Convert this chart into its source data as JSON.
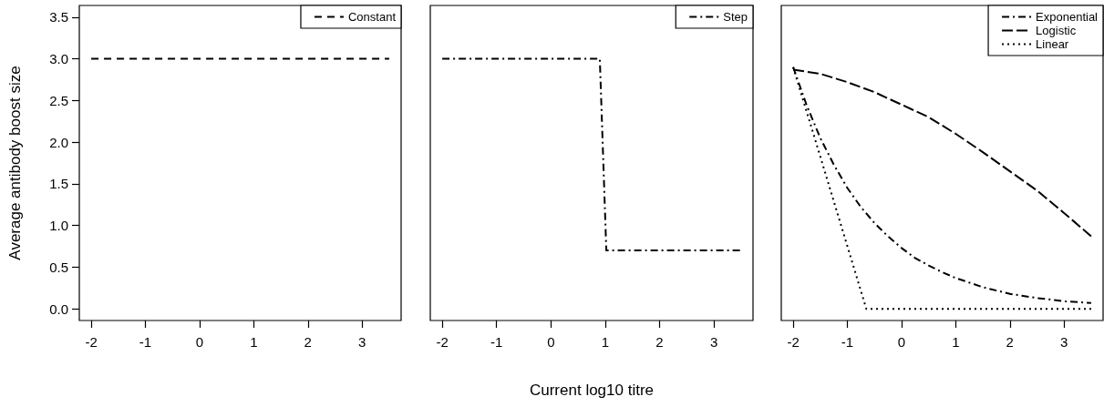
{
  "chart_data": [
    {
      "type": "line",
      "ylabel": "Average antibody boost size",
      "legend": "top right",
      "xlim": [
        -2.22,
        3.72
      ],
      "ylim": [
        -0.14,
        3.64
      ],
      "xticks": [
        -2,
        -1,
        0,
        1,
        2,
        3
      ],
      "yticks": [
        {
          "value": 0,
          "label": "0.0"
        },
        {
          "value": 0.5,
          "label": "0.5"
        },
        {
          "value": 1,
          "label": "1.0"
        },
        {
          "value": 1.5,
          "label": "1.5"
        },
        {
          "value": 2,
          "label": "2.0"
        },
        {
          "value": 2.5,
          "label": "2.5"
        },
        {
          "value": 3,
          "label": "3.0"
        },
        {
          "value": 3.5,
          "label": "3.5"
        }
      ],
      "series": [
        {
          "name": "Constant",
          "color": "#000000",
          "line_style": "dashed",
          "x": [
            -2,
            3.5
          ],
          "values": [
            3,
            3
          ]
        }
      ]
    },
    {
      "type": "line",
      "xlabel": "Current log10 titre",
      "legend": "top right",
      "tick_labels": "x",
      "xlim": [
        -2.22,
        3.72
      ],
      "ylim": [
        -0.14,
        3.64
      ],
      "xticks": [
        -2,
        -1,
        0,
        1,
        2,
        3
      ],
      "series": [
        {
          "name": "Step",
          "color": "#000000",
          "line_style": "dashdot",
          "x": [
            -2,
            0.9,
            1.02,
            3.5
          ],
          "values": [
            3,
            3,
            0.7,
            0.7
          ]
        }
      ]
    },
    {
      "type": "line",
      "legend": "top right",
      "tick_labels": "x",
      "xlim": [
        -2.22,
        3.72
      ],
      "ylim": [
        -0.14,
        3.64
      ],
      "xticks": [
        -2,
        -1,
        0,
        1,
        2,
        3
      ],
      "series": [
        {
          "name": "Exponential",
          "color": "#000000",
          "line_style": "dashdot",
          "x": [
            -2,
            -1.75,
            -1.5,
            -1.25,
            -1,
            -0.75,
            -0.5,
            -0.25,
            0,
            0.25,
            0.5,
            0.75,
            1,
            1.5,
            2,
            2.5,
            3,
            3.5
          ],
          "values": [
            2.9,
            2.44,
            2.05,
            1.73,
            1.45,
            1.22,
            1.03,
            0.87,
            0.73,
            0.61,
            0.52,
            0.44,
            0.37,
            0.26,
            0.18,
            0.13,
            0.09,
            0.07
          ]
        },
        {
          "name": "Logistic",
          "color": "#000000",
          "line_style": "longdash",
          "x": [
            -2,
            -1.5,
            -1,
            -0.5,
            0,
            0.5,
            1,
            1.5,
            2,
            2.5,
            3,
            3.5
          ],
          "values": [
            2.87,
            2.82,
            2.72,
            2.6,
            2.45,
            2.3,
            2.1,
            1.88,
            1.65,
            1.42,
            1.15,
            0.87
          ]
        },
        {
          "name": "Linear",
          "color": "#000000",
          "line_style": "dotted",
          "x": [
            -2,
            -0.65,
            3.5
          ],
          "values": [
            2.9,
            0,
            0
          ]
        }
      ]
    }
  ]
}
